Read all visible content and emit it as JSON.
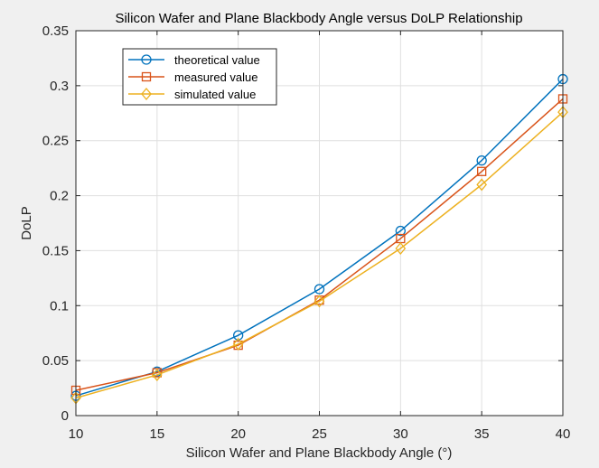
{
  "chart_data": {
    "type": "line",
    "title": "Silicon Wafer and Plane Blackbody Angle versus DoLP Relationship",
    "xlabel": "Silicon Wafer and Plane Blackbody Angle  (°)",
    "ylabel": "DoLP",
    "xlim": [
      10,
      40
    ],
    "ylim": [
      0,
      0.35
    ],
    "x": [
      10,
      15,
      20,
      25,
      30,
      35,
      40
    ],
    "xticks": [
      "10",
      "15",
      "20",
      "25",
      "30",
      "35",
      "40"
    ],
    "yticks": [
      "0",
      "0.05",
      "0.1",
      "0.15",
      "0.2",
      "0.25",
      "0.3",
      "0.35"
    ],
    "grid": true,
    "legend_position": "top-left",
    "series": [
      {
        "name": "theoretical value",
        "marker": "circle",
        "color": "#0072BD",
        "values": [
          0.018,
          0.04,
          0.073,
          0.115,
          0.168,
          0.232,
          0.306
        ]
      },
      {
        "name": "measured value",
        "marker": "square",
        "color": "#D95319",
        "values": [
          0.023,
          0.039,
          0.064,
          0.105,
          0.161,
          0.222,
          0.288
        ]
      },
      {
        "name": "simulated value",
        "marker": "diamond",
        "color": "#EDB120",
        "values": [
          0.016,
          0.037,
          0.065,
          0.104,
          0.152,
          0.21,
          0.276
        ]
      }
    ]
  }
}
